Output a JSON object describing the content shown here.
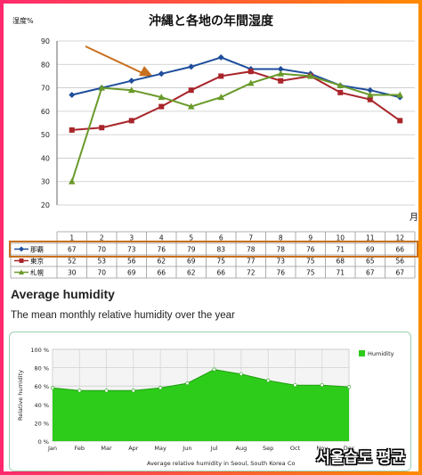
{
  "chart_data": [
    {
      "type": "line",
      "title": "沖縄と各地の年間湿度",
      "ylabel": "湿度%",
      "xlabel": "月",
      "ylim": [
        20,
        90
      ],
      "yticks": [
        20,
        30,
        40,
        50,
        60,
        70,
        80,
        90
      ],
      "categories": [
        "1",
        "2",
        "3",
        "4",
        "5",
        "6",
        "7",
        "8",
        "9",
        "10",
        "11",
        "12"
      ],
      "grid": true,
      "series": [
        {
          "name": "那覇",
          "color": "#1f4e9c",
          "marker": "diamond",
          "values": [
            67,
            70,
            73,
            76,
            79,
            83,
            78,
            78,
            76,
            71,
            69,
            66
          ]
        },
        {
          "name": "東京",
          "color": "#a8252b",
          "marker": "square",
          "values": [
            52,
            53,
            56,
            62,
            69,
            75,
            77,
            73,
            75,
            68,
            65,
            56
          ]
        },
        {
          "name": "札幌",
          "color": "#6a9a2a",
          "marker": "triangle",
          "values": [
            30,
            70,
            69,
            66,
            62,
            66,
            72,
            76,
            75,
            71,
            67,
            67
          ]
        }
      ],
      "table": true,
      "annotation": "arrow",
      "annotation_color": "#c8701e",
      "highlight_color": "#c8701e"
    },
    {
      "type": "area",
      "title": "Average relative humidity in Seoul, South Korea",
      "ylabel": "Relative humidity",
      "legend": "Humidity",
      "legend_position": "top-right",
      "color": "#2ecc1a",
      "categories": [
        "Jan",
        "Feb",
        "Mar",
        "Apr",
        "May",
        "Jun",
        "Jul",
        "Aug",
        "Sep",
        "Oct",
        "Nov",
        "Dec"
      ],
      "values": [
        58,
        55,
        55,
        55,
        58,
        63,
        78,
        73,
        66,
        61,
        61,
        59
      ],
      "ylim": [
        0,
        100
      ],
      "yticks": [
        "0 %",
        "20 %",
        "40 %",
        "60 %",
        "80 %",
        "100 %"
      ],
      "footer_right": "Co"
    }
  ],
  "section": {
    "title": "Average humidity",
    "subtitle": "The mean monthly relative humidity over the year"
  },
  "watermark": "서울습도 평균"
}
